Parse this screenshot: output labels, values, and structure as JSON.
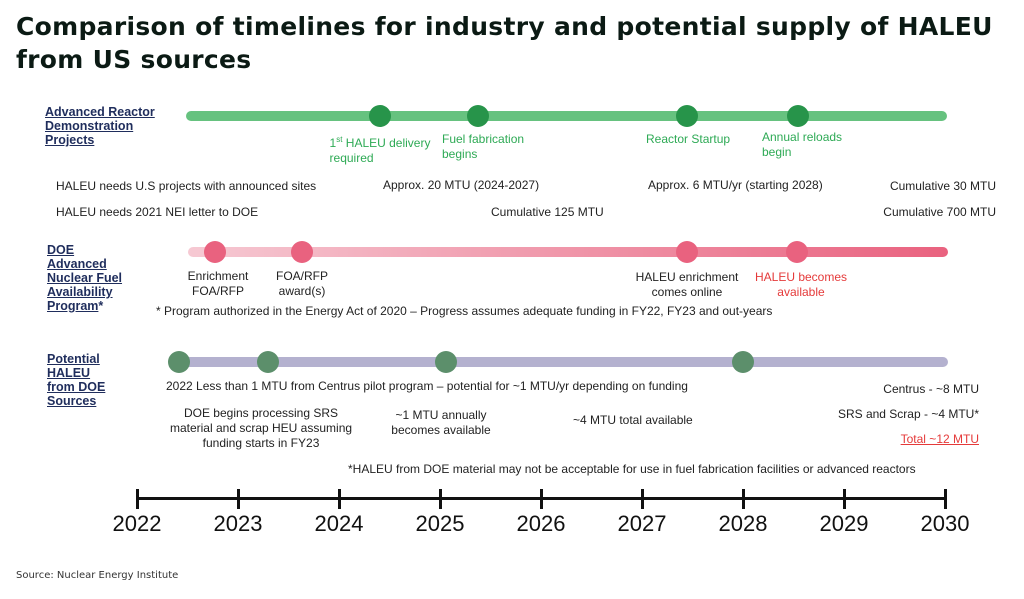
{
  "title": "Comparison of timelines for industry and potential supply of HALEU from US sources",
  "source": "Source: Nuclear Energy Institute",
  "colors": {
    "green_bar": "#66c27f",
    "green_dot": "#27944a",
    "red_bar": "#ee8aa0",
    "red_dot": "#e9627f",
    "grey_bar": "#b4b1cf",
    "grey_dot": "#5c8f6b"
  },
  "axis": {
    "years": [
      "2022",
      "2023",
      "2024",
      "2025",
      "2026",
      "2027",
      "2028",
      "2029",
      "2030"
    ]
  },
  "ard": {
    "title_line1": "Advanced Reactor",
    "title_line2": "Demonstration",
    "title_line3": "Projects",
    "m1_line1_a": "1",
    "m1_line1_sup": "st",
    "m1_line1_b": " HALEU delivery",
    "m1_line2": "required",
    "m2_line1": "Fuel fabrication",
    "m2_line2": "begins",
    "m3": "Reactor Startup",
    "m4_line1": "Annual reloads",
    "m4_line2": "begin",
    "note1": "HALEU needs U.S projects with announced sites",
    "note2": "HALEU needs 2021 NEI letter to DOE",
    "note3": "Approx. 20 MTU (2024-2027)",
    "note4": "Cumulative 125 MTU",
    "note5": "Approx. 6 MTU/yr (starting 2028)",
    "note6": "Cumulative 30 MTU",
    "note7": "Cumulative 700 MTU"
  },
  "doe_fuel": {
    "title_line1": "DOE",
    "title_line2": "Advanced",
    "title_line3": "Nuclear Fuel",
    "title_line4": "Availability",
    "title_line5": "Program",
    "title_asterisk": "*",
    "m1_line1": "Enrichment",
    "m1_line2": "FOA/RFP",
    "m2_line1": "FOA/RFP",
    "m2_line2": "award(s)",
    "m3_line1": "HALEU enrichment",
    "m3_line2": "comes online",
    "m4_line1": "HALEU becomes",
    "m4_line2": "available",
    "footnote": "* Program authorized in the Energy Act of 2020 – Progress assumes adequate funding in FY22, FY23 and out-years"
  },
  "doe_sources": {
    "title_line1": "Potential",
    "title_line2": "HALEU",
    "title_line3": "from DOE",
    "title_line4": "Sources",
    "note1": "2022   Less than 1 MTU from Centrus pilot program – potential for ~1 MTU/yr depending on funding",
    "note2_line1": "DOE begins processing SRS",
    "note2_line2": "material and scrap HEU assuming",
    "note2_line3": "funding starts in FY23",
    "note3_line1": "~1 MTU annually",
    "note3_line2": "becomes available",
    "note4": "~4 MTU total available",
    "note5": "Centrus - ~8 MTU",
    "note6": "SRS and Scrap - ~4 MTU*",
    "note7": "Total ~12 MTU",
    "footnote": "*HALEU from DOE material may not be acceptable for use in fuel fabrication facilities or advanced reactors"
  }
}
